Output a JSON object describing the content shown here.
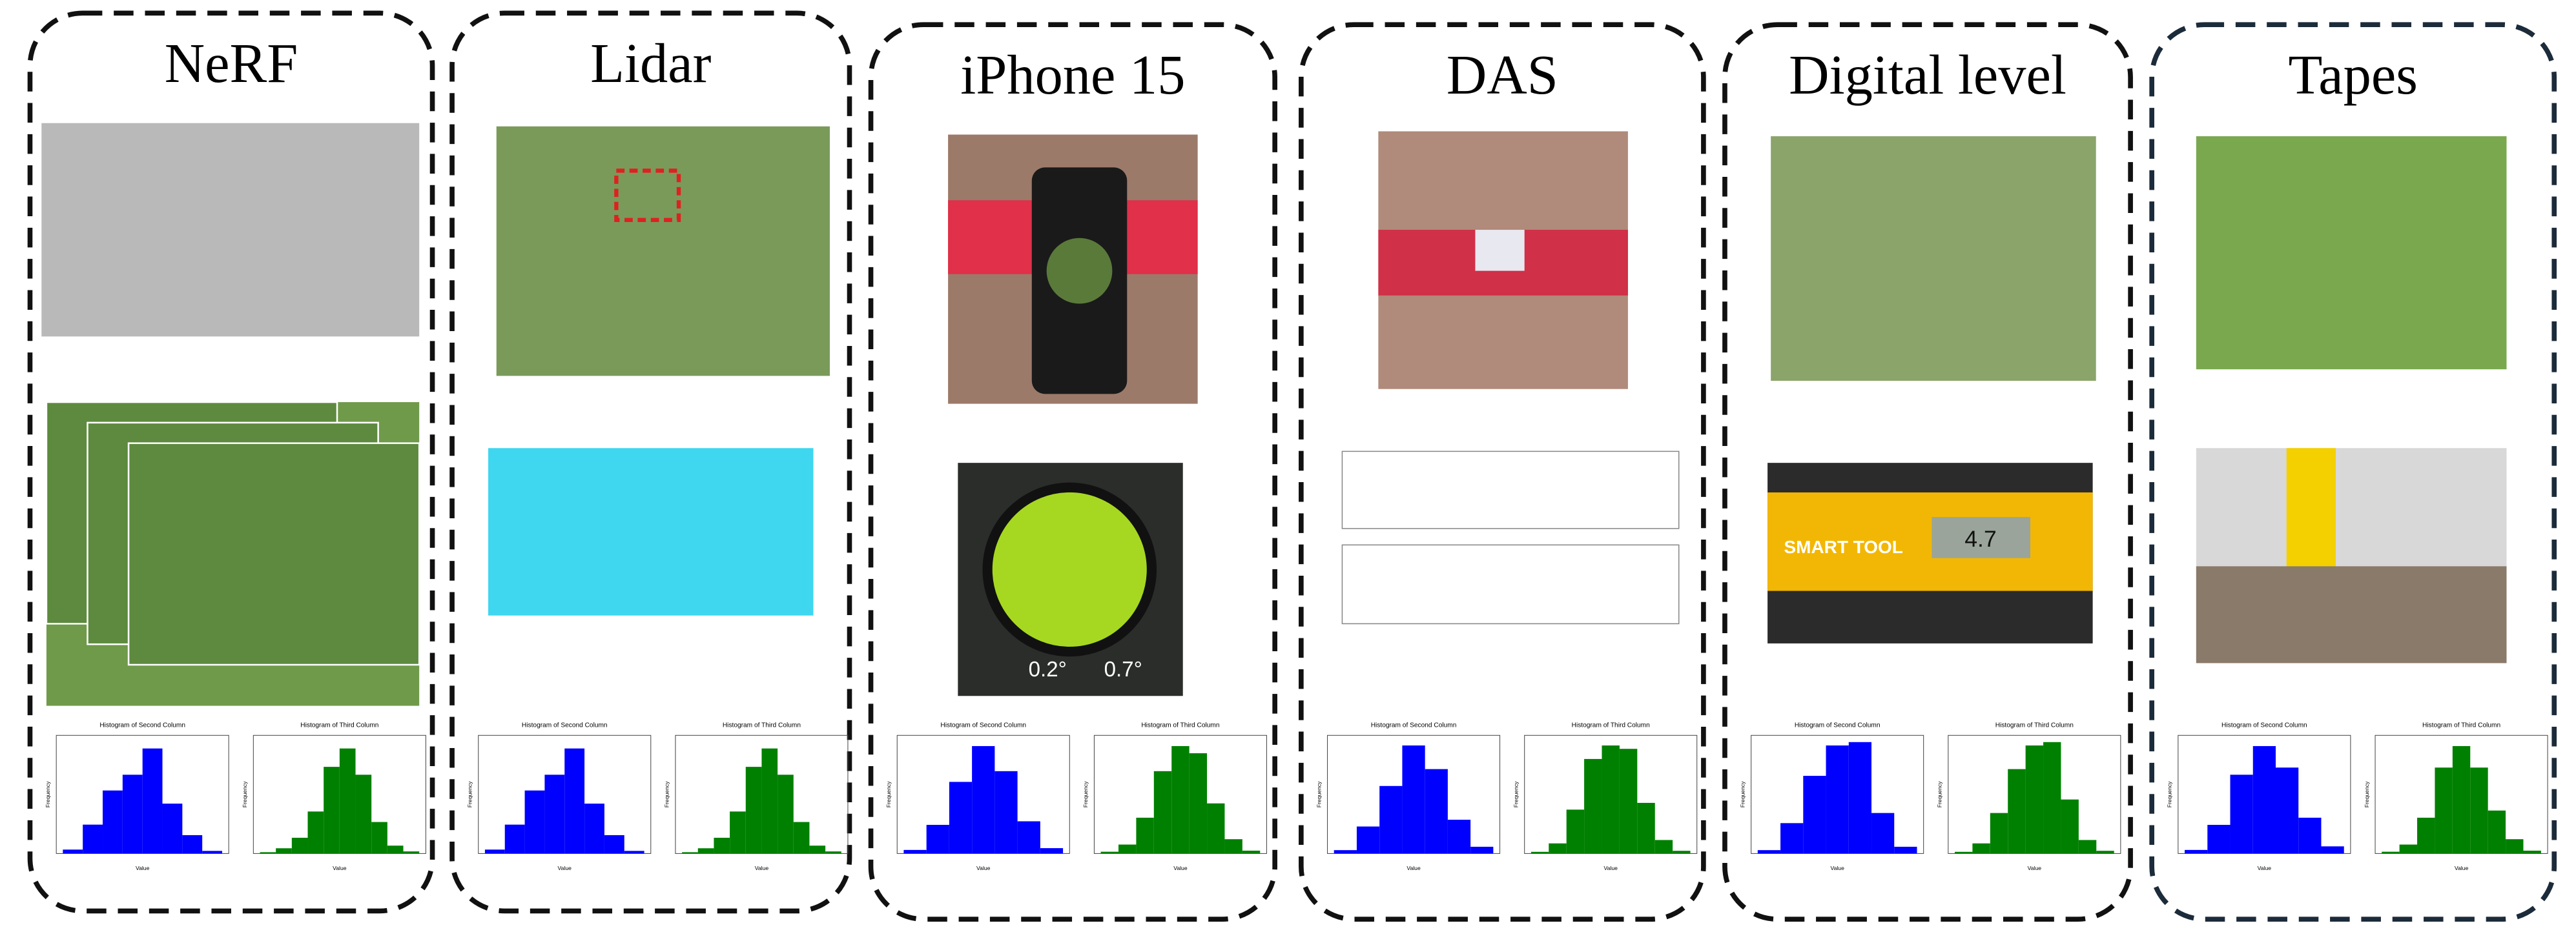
{
  "panels": [
    {
      "title": "NeRF",
      "photos": [
        {},
        {}
      ],
      "histograms": [
        {
          "title": "Histogram of Second Column",
          "color": "#0000ff",
          "values": [
            15,
            110,
            240,
            300,
            400,
            190,
            70,
            10
          ],
          "ylim": [
            0,
            450
          ],
          "xlabel": "Value",
          "ylabel": "Frequency"
        },
        {
          "title": "Histogram of Third Column",
          "color": "#008000",
          "values": [
            5,
            20,
            60,
            160,
            330,
            400,
            300,
            120,
            30,
            8
          ],
          "ylim": [
            0,
            450
          ],
          "xlabel": "Value",
          "ylabel": "Frequency"
        }
      ]
    },
    {
      "title": "Lidar",
      "photos": [
        {},
        {}
      ],
      "histograms": [
        {
          "title": "Histogram of Second Column",
          "color": "#0000ff",
          "values": [
            15,
            110,
            240,
            300,
            400,
            190,
            70,
            10
          ],
          "ylim": [
            0,
            450
          ],
          "xlabel": "Value",
          "ylabel": "Frequency"
        },
        {
          "title": "Histogram of Third Column",
          "color": "#008000",
          "values": [
            5,
            20,
            60,
            160,
            330,
            400,
            300,
            120,
            30,
            8
          ],
          "ylim": [
            0,
            450
          ],
          "xlabel": "Value",
          "ylabel": "Frequency"
        }
      ]
    },
    {
      "title": "iPhone 15",
      "photos": [
        {},
        {
          "labels": [
            "0.2°",
            "0.7°"
          ]
        }
      ],
      "histograms": [
        {
          "title": "Histogram of Second Column",
          "color": "#0000ff",
          "values": [
            10,
            80,
            200,
            300,
            230,
            90,
            15
          ],
          "ylim": [
            0,
            330
          ],
          "xlabel": "Value",
          "ylabel": "Frequency"
        },
        {
          "title": "Histogram of Third Column",
          "color": "#008000",
          "values": [
            5,
            25,
            100,
            230,
            300,
            280,
            140,
            40,
            8
          ],
          "ylim": [
            0,
            330
          ],
          "xlabel": "Value",
          "ylabel": "Frequency"
        }
      ]
    },
    {
      "title": "DAS",
      "photos": [
        {},
        {}
      ],
      "histograms": [
        {
          "title": "Histogram of Second Column",
          "color": "#0000ff",
          "values": [
            10,
            80,
            200,
            320,
            250,
            100,
            20
          ],
          "ylim": [
            0,
            350
          ],
          "xlabel": "Value",
          "ylabel": "Frequency"
        },
        {
          "title": "Histogram of Third Column",
          "color": "#008000",
          "values": [
            5,
            30,
            130,
            280,
            320,
            310,
            150,
            40,
            8
          ],
          "ylim": [
            0,
            350
          ],
          "xlabel": "Value",
          "ylabel": "Frequency"
        }
      ]
    },
    {
      "title": "Digital level",
      "photos": [
        {},
        {
          "labels": [
            "SMART TOOL",
            "4.7"
          ]
        }
      ],
      "histograms": [
        {
          "title": "Histogram of Second Column",
          "color": "#0000ff",
          "values": [
            10,
            90,
            230,
            320,
            330,
            120,
            20
          ],
          "ylim": [
            0,
            350
          ],
          "xlabel": "Value",
          "ylabel": "Frequency"
        },
        {
          "title": "Histogram of Third Column",
          "color": "#008000",
          "values": [
            5,
            30,
            120,
            250,
            320,
            330,
            160,
            40,
            8
          ],
          "ylim": [
            0,
            350
          ],
          "xlabel": "Value",
          "ylabel": "Frequency"
        }
      ]
    },
    {
      "title": "Tapes",
      "photos": [
        {},
        {}
      ],
      "histograms": [
        {
          "title": "Histogram of Second Column",
          "color": "#0000ff",
          "values": [
            10,
            80,
            220,
            300,
            240,
            100,
            20
          ],
          "ylim": [
            0,
            330
          ],
          "xlabel": "Value",
          "ylabel": "Frequency"
        },
        {
          "title": "Histogram of Third Column",
          "color": "#008000",
          "values": [
            5,
            25,
            100,
            240,
            300,
            240,
            120,
            40,
            8
          ],
          "ylim": [
            0,
            330
          ],
          "xlabel": "Value",
          "ylabel": "Frequency"
        }
      ]
    }
  ]
}
